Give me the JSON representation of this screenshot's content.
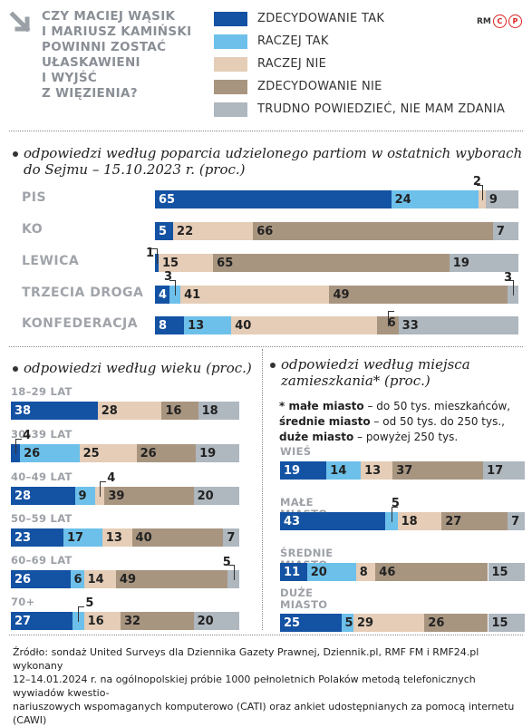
{
  "question": [
    "CZY MACIEJ WĄSIK",
    "I MARIUSZ KAMIŃSKI",
    "POWINNI ZOSTAĆ",
    "UŁASKAWIENI",
    "I WYJŚĆ",
    "Z WIĘZIENIA?"
  ],
  "logo": {
    "rm": "RM",
    "c": "C",
    "p": "P"
  },
  "colors": {
    "zdecydowanie_tak": "#1452a3",
    "raczej_tak": "#6dc0ea",
    "raczej_nie": "#e5cdb7",
    "zdecydowanie_nie": "#a89580",
    "trudno": "#afb7bf",
    "text_on_dark": "#ffffff",
    "text_on_light": "#222222"
  },
  "legend": [
    {
      "label": "ZDECYDOWANIE TAK",
      "color": "#1452a3"
    },
    {
      "label": "RACZEJ TAK",
      "color": "#6dc0ea"
    },
    {
      "label": "RACZEJ NIE",
      "color": "#e5cdb7"
    },
    {
      "label": "ZDECYDOWANIE NIE",
      "color": "#a89580"
    },
    {
      "label": "TRUDNO POWIEDZIEĆ, NIE MAM ZDANIA",
      "color": "#afb7bf"
    }
  ],
  "sections": {
    "party": [
      "odpowiedzi według poparcia udzielonego partiom w ostatnich wyborach",
      "do Sejmu – 15.10.2023 r. (proc.)"
    ],
    "age": "odpowiedzi według wieku (proc.)",
    "place": [
      "odpowiedzi według miejsca",
      "zamieszkania* (proc.)"
    ]
  },
  "note": {
    "l1_b": "* małe miasto",
    "l1": " – do 50 tys. mieszkańców,",
    "l2_b": "średnie miasto",
    "l2": " – od 50 tys. do 250 tys.,",
    "l3_b": "duże miasto",
    "l3": " – powyżej 250 tys."
  },
  "source": [
    "Źródło: sondaż United Surveys dla Dziennika Gazety Prawnej, Dziennik.pl, RMF FM i RMF24.pl wykonany",
    "12–14.01.2024 r. na ogólnopolskiej próbie 1000 pełnoletnich Polaków metodą telefonicznych wywiadów kwestio-",
    "nariuszowych wspomaganych komputerowo (CATI) oraz ankiet udostępnianych za pomocą internetu (CAWI)"
  ],
  "chart_data": [
    {
      "type": "bar",
      "stacked": true,
      "orientation": "horizontal",
      "categories": [
        "PIS",
        "KO",
        "LEWICA",
        "TRZECIA DROGA",
        "KONFEDERACJA"
      ],
      "series": [
        {
          "name": "ZDECYDOWANIE TAK",
          "values": [
            65,
            5,
            1,
            4,
            8
          ]
        },
        {
          "name": "RACZEJ TAK",
          "values": [
            24,
            0,
            0,
            3,
            13
          ]
        },
        {
          "name": "RACZEJ NIE",
          "values": [
            2,
            22,
            15,
            41,
            40
          ]
        },
        {
          "name": "ZDECYDOWANIE NIE",
          "values": [
            0,
            66,
            65,
            49,
            6
          ]
        },
        {
          "name": "TRUDNO POWIEDZIEĆ, NIE MAM ZDANIA",
          "values": [
            9,
            7,
            19,
            3,
            33
          ]
        }
      ]
    },
    {
      "type": "bar",
      "stacked": true,
      "orientation": "horizontal",
      "categories": [
        "18–29 LAT",
        "30–39 LAT",
        "40–49 LAT",
        "50–59 LAT",
        "60–69 LAT",
        "70+"
      ],
      "series": [
        {
          "name": "ZDECYDOWANIE TAK",
          "values": [
            38,
            4,
            28,
            23,
            26,
            27
          ]
        },
        {
          "name": "RACZEJ TAK",
          "values": [
            0,
            26,
            9,
            17,
            6,
            5
          ]
        },
        {
          "name": "RACZEJ NIE",
          "values": [
            28,
            25,
            4,
            13,
            14,
            16
          ]
        },
        {
          "name": "ZDECYDOWANIE NIE",
          "values": [
            16,
            26,
            39,
            40,
            49,
            32
          ]
        },
        {
          "name": "TRUDNO POWIEDZIEĆ, NIE MAM ZDANIA",
          "values": [
            18,
            19,
            20,
            7,
            5,
            20
          ]
        }
      ]
    },
    {
      "type": "bar",
      "stacked": true,
      "orientation": "horizontal",
      "categories": [
        "WIEŚ",
        "MAŁE MIASTO",
        "ŚREDNIE MIASTO",
        "DUŻE MIASTO"
      ],
      "series": [
        {
          "name": "ZDECYDOWANIE TAK",
          "values": [
            19,
            43,
            11,
            25
          ]
        },
        {
          "name": "RACZEJ TAK",
          "values": [
            14,
            5,
            20,
            5
          ]
        },
        {
          "name": "RACZEJ NIE",
          "values": [
            13,
            18,
            8,
            29
          ]
        },
        {
          "name": "ZDECYDOWANIE NIE",
          "values": [
            37,
            27,
            46,
            26
          ]
        },
        {
          "name": "TRUDNO POWIEDZIEĆ, NIE MAM ZDANIA",
          "values": [
            17,
            7,
            15,
            15
          ]
        }
      ]
    }
  ]
}
